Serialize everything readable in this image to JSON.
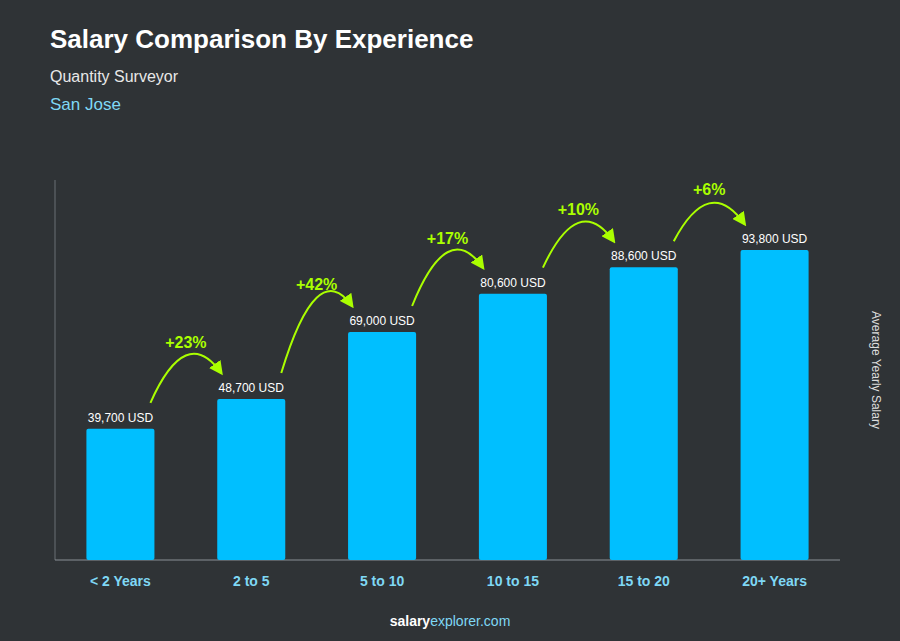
{
  "chart_data": {
    "type": "bar",
    "title": "Salary Comparison By Experience",
    "subtitle": "Quantity Surveyor",
    "city": "San Jose",
    "ylabel": "Average Yearly Salary",
    "footer": [
      "salary",
      "explorer.com"
    ],
    "categories": [
      "< 2 Years",
      "2 to 5",
      "5 to 10",
      "10 to 15",
      "15 to 20",
      "20+ Years"
    ],
    "values": [
      39700,
      48700,
      69000,
      80600,
      88600,
      93800
    ],
    "value_labels": [
      "39,700 USD",
      "48,700 USD",
      "69,000 USD",
      "80,600 USD",
      "88,600 USD",
      "93,800 USD"
    ],
    "data_labels": true,
    "color": "#00BFFF",
    "annotations": [
      {
        "text": "+23%",
        "color": "#AAFF00"
      },
      {
        "text": "+42%",
        "color": "#AAFF00"
      },
      {
        "text": "+17%",
        "color": "#AAFF00"
      },
      {
        "text": "+10%",
        "color": "#AAFF00"
      },
      {
        "text": "+6%",
        "color": "#AAFF00"
      }
    ],
    "ylim": [
      0,
      115000
    ],
    "tick_labels": "x",
    "grid": false
  }
}
